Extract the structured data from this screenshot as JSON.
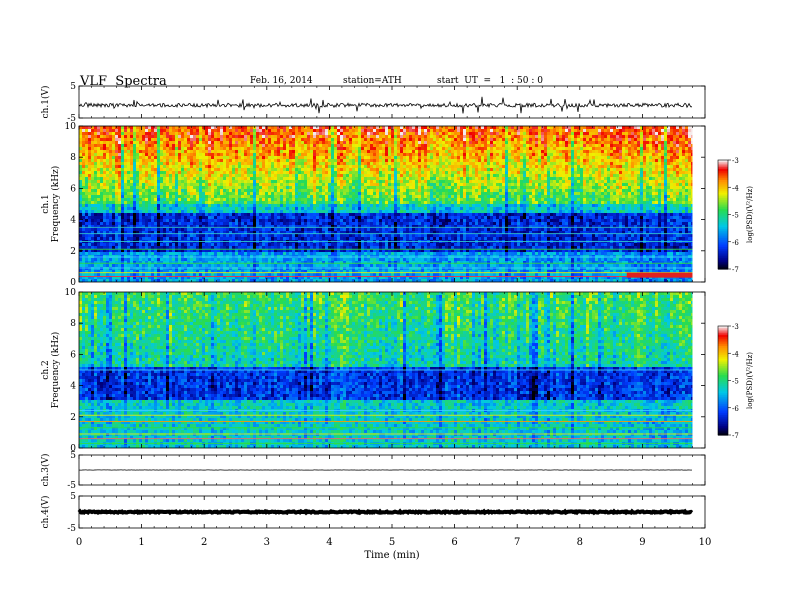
{
  "header": {
    "title": "VLF  Spectra",
    "date": "Feb. 16, 2014",
    "station": "station=ATH",
    "start": "start  UT  =   1  : 50 : 0"
  },
  "colorbar": {
    "ticks": [
      "-3",
      "-4",
      "-5",
      "-6",
      "-7"
    ],
    "label": "log(PSD)(V²/Hz)",
    "colors": [
      "#f4f4f4",
      "#ff0000",
      "#ff9900",
      "#ffff00",
      "#33dd33",
      "#00cccc",
      "#0066ff",
      "#000099",
      "#000000"
    ]
  },
  "chart_data": {
    "type": "heatmap",
    "title": "VLF  Spectra",
    "xlabel": "Time  (min)",
    "xlim": [
      0,
      10
    ],
    "x_ticks": [
      "0",
      "1",
      "2",
      "3",
      "4",
      "5",
      "6",
      "7",
      "8",
      "9",
      "10"
    ],
    "data_end_min": 9.8,
    "panels": [
      {
        "name": "ch.1(V)",
        "kind": "waveform",
        "ylabel": "ch.1(V)",
        "ylim": [
          -5,
          5
        ],
        "y_ticks": [
          "5",
          "-5"
        ],
        "baseline": -1.0,
        "noise_amplitude": 0.6
      },
      {
        "name": "ch.1",
        "kind": "spectrogram",
        "ylabel": "ch.1\nFrequency  (kHz)",
        "ylim": [
          0,
          10
        ],
        "y_ticks": [
          "0",
          "2",
          "4",
          "6",
          "8",
          "10"
        ],
        "colorbar_range": [
          -7,
          -3
        ],
        "colorbar_label": "log(PSD)(V²/Hz)",
        "notable_features": "strong emission 5–10 kHz, quiet band 2–4.5 kHz, narrowband lines below 2 kHz, change at ~8.75 min"
      },
      {
        "name": "ch.2",
        "kind": "spectrogram",
        "ylabel": "ch.2\nFrequency  (kHz)",
        "ylim": [
          0,
          10
        ],
        "y_ticks": [
          "0",
          "2",
          "4",
          "6",
          "8",
          "10"
        ],
        "colorbar_range": [
          -7,
          -3
        ],
        "colorbar_label": "log(PSD)(V²/Hz)",
        "notable_features": "moderate emission, quiet band 3–5 kHz, narrowband lines below 2.5 kHz, change at ~8.75 min"
      },
      {
        "name": "ch.3(V)",
        "kind": "waveform",
        "ylabel": "ch.3(V)",
        "ylim": [
          -5,
          5
        ],
        "y_ticks": [
          "5",
          "-5"
        ],
        "baseline": 0.0,
        "noise_amplitude": 0.05
      },
      {
        "name": "ch.4(V)",
        "kind": "waveform",
        "ylabel": "ch.4(V)",
        "ylim": [
          -5,
          5
        ],
        "y_ticks": [
          "5",
          "-5"
        ],
        "baseline": 0.0,
        "noise_amplitude": 0.2
      }
    ]
  }
}
